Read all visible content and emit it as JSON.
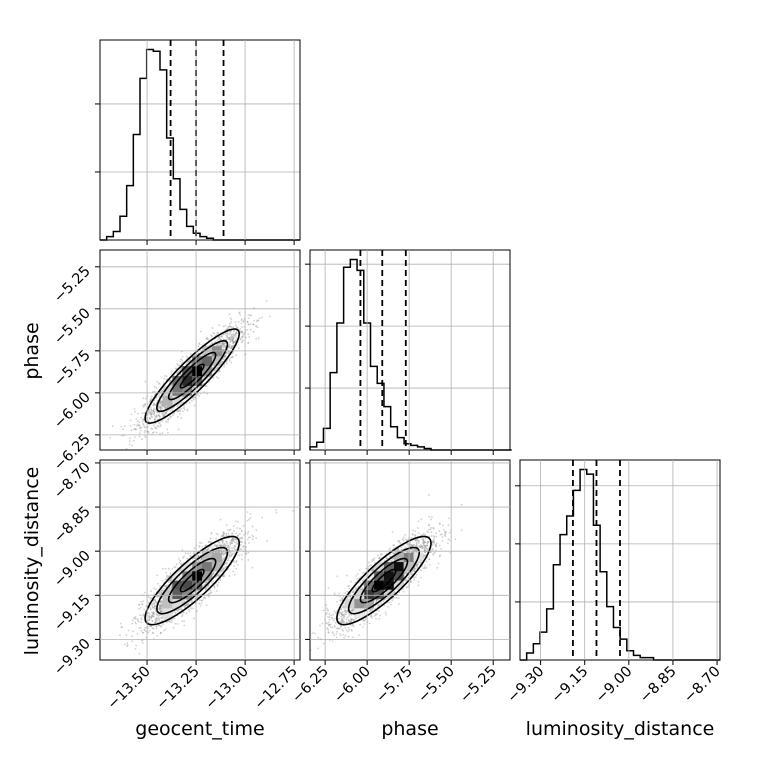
{
  "chart_data": {
    "type": "corner",
    "parameters": [
      "geocent_time",
      "phase",
      "luminosity_distance"
    ],
    "axis_labels": {
      "geocent_time": "geocent_time",
      "phase": "phase",
      "luminosity_distance": "luminosity_distance"
    },
    "ranges": {
      "geocent_time": [
        -13.74,
        -12.72
      ],
      "phase": [
        -6.34,
        -5.15
      ],
      "luminosity_distance": [
        -9.37,
        -8.69
      ]
    },
    "ticks": {
      "geocent_time": [
        {
          "value": -13.5,
          "label": "−13.50"
        },
        {
          "value": -13.25,
          "label": "−13.25"
        },
        {
          "value": -13.0,
          "label": "−13.00"
        },
        {
          "value": -12.75,
          "label": "−12.75"
        }
      ],
      "phase": [
        {
          "value": -6.25,
          "label": "−6.25"
        },
        {
          "value": -6.0,
          "label": "−6.00"
        },
        {
          "value": -5.75,
          "label": "−5.75"
        },
        {
          "value": -5.5,
          "label": "−5.50"
        },
        {
          "value": -5.25,
          "label": "−5.25"
        }
      ],
      "luminosity_distance": [
        {
          "value": -9.3,
          "label": "−9.30"
        },
        {
          "value": -9.15,
          "label": "−9.15"
        },
        {
          "value": -9.0,
          "label": "−9.00"
        },
        {
          "value": -8.85,
          "label": "−8.85"
        },
        {
          "value": -8.7,
          "label": "−8.70"
        }
      ]
    },
    "quantiles": {
      "geocent_time": [
        -13.38,
        -13.25,
        -13.11
      ],
      "phase": [
        -6.04,
        -5.91,
        -5.77
      ],
      "luminosity_distance": [
        -9.19,
        -9.11,
        -9.03
      ]
    },
    "histograms": {
      "geocent_time": {
        "start": -13.74,
        "width": 0.034,
        "counts": [
          0,
          2,
          5,
          14,
          32,
          62,
          95,
          112,
          111,
          100,
          60,
          36,
          18,
          8,
          4,
          2,
          1,
          0,
          0,
          0,
          0,
          0,
          0,
          0,
          0,
          0,
          0,
          0,
          0,
          0
        ]
      },
      "phase": {
        "start": -6.34,
        "width": 0.04,
        "counts": [
          2,
          5,
          14,
          50,
          82,
          118,
          123,
          116,
          82,
          54,
          43,
          28,
          15,
          8,
          4,
          3,
          2,
          1,
          0,
          0,
          0,
          0,
          0,
          0,
          0,
          0,
          0,
          0,
          0,
          0
        ]
      },
      "luminosity_distance": {
        "start": -9.37,
        "width": 0.0227,
        "counts": [
          0,
          3,
          7,
          12,
          22,
          41,
          54,
          62,
          73,
          82,
          80,
          58,
          38,
          23,
          14,
          9,
          4,
          2,
          1,
          1,
          0,
          0,
          0,
          0,
          0,
          0,
          0,
          0,
          0,
          0
        ]
      }
    },
    "pairs": [
      {
        "x": "geocent_time",
        "y": "phase",
        "mean": [
          -13.27,
          -5.9
        ],
        "sd": [
          0.12,
          0.14
        ],
        "rho": 0.9
      },
      {
        "x": "geocent_time",
        "y": "luminosity_distance",
        "mean": [
          -13.27,
          -9.1
        ],
        "sd": [
          0.12,
          0.075
        ],
        "rho": 0.85
      },
      {
        "x": "phase",
        "y": "luminosity_distance",
        "mean": [
          -5.9,
          -9.1
        ],
        "sd": [
          0.14,
          0.075
        ],
        "rho": 0.85
      }
    ],
    "contour_levels_sigma": [
      0.5,
      1.0,
      1.5,
      2.0
    ],
    "grid": true,
    "colors": {
      "line": "#000000",
      "grid": "#b0b0b0",
      "points": "#9a9a9a"
    }
  }
}
